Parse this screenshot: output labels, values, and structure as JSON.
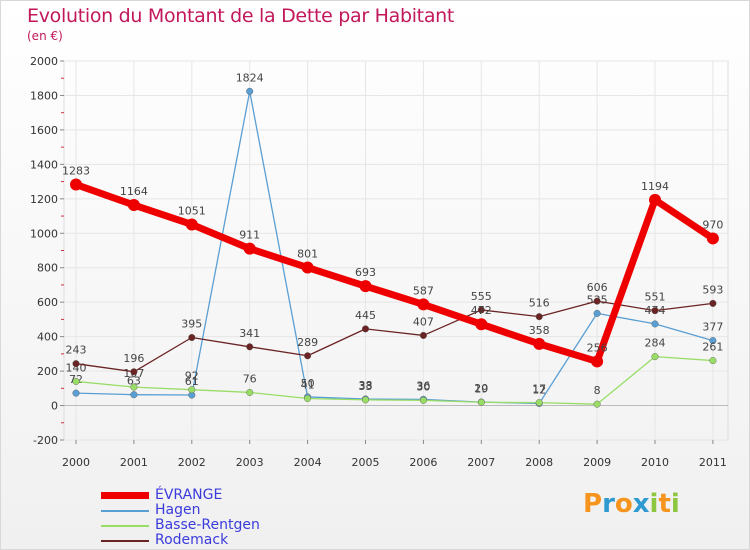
{
  "header": {
    "title": "Evolution du Montant de la Dette par Habitant",
    "subtitle": "(en €)"
  },
  "brand": {
    "text": "Proxiti",
    "colors": [
      "#f7941d",
      "#2e9ad0",
      "#f7941d",
      "#2e9ad0",
      "#8dc63f",
      "#f7941d",
      "#8dc63f"
    ]
  },
  "chart_data": {
    "type": "line",
    "title": "Evolution du Montant de la Dette par Habitant",
    "subtitle": "(en €)",
    "xlabel": "",
    "ylabel": "",
    "ylim": [
      -200,
      2000
    ],
    "yticks": [
      -200,
      0,
      200,
      400,
      600,
      800,
      1000,
      1200,
      1400,
      1600,
      1800,
      2000
    ],
    "categories": [
      "2000",
      "2001",
      "2002",
      "2003",
      "2004",
      "2005",
      "2006",
      "2007",
      "2008",
      "2009",
      "2010",
      "2011"
    ],
    "series": [
      {
        "name": "Hagen",
        "color": "#5a9fd4",
        "values": [
          72,
          63,
          61,
          1824,
          50,
          38,
          36,
          20,
          12,
          535,
          474,
          377
        ],
        "labels": [
          "72",
          "63",
          "61",
          "1824",
          "50",
          "38",
          "36",
          "20",
          "12",
          "535",
          "474",
          "377"
        ]
      },
      {
        "name": "Basse-Rentgen",
        "color": "#99dd66",
        "values": [
          140,
          107,
          92,
          76,
          41,
          33,
          30,
          19,
          17,
          8,
          284,
          261
        ],
        "labels": [
          "140",
          "107",
          "92",
          "76",
          "41",
          "33",
          "30",
          "19",
          "17",
          "8",
          "284",
          "261"
        ]
      },
      {
        "name": "Rodemack",
        "color": "#6b2424",
        "values": [
          243,
          196,
          395,
          341,
          289,
          445,
          407,
          555,
          516,
          606,
          551,
          593
        ],
        "labels": [
          "243",
          "196",
          "395",
          "341",
          "289",
          "445",
          "407",
          "555",
          "516",
          "606",
          "551",
          "593"
        ]
      },
      {
        "name": "ÉVRANGE",
        "color": "#ee0000",
        "values": [
          1283,
          1164,
          1051,
          911,
          801,
          693,
          587,
          472,
          358,
          256,
          1194,
          970
        ],
        "labels": [
          "1283",
          "1164",
          "1051",
          "911",
          "801",
          "693",
          "587",
          "472",
          "358",
          "256",
          "1194",
          "970"
        ]
      }
    ],
    "legend": {
      "placement": "bottom-left",
      "order": [
        "ÉVRANGE",
        "Hagen",
        "Basse-Rentgen",
        "Rodemack"
      ]
    }
  }
}
